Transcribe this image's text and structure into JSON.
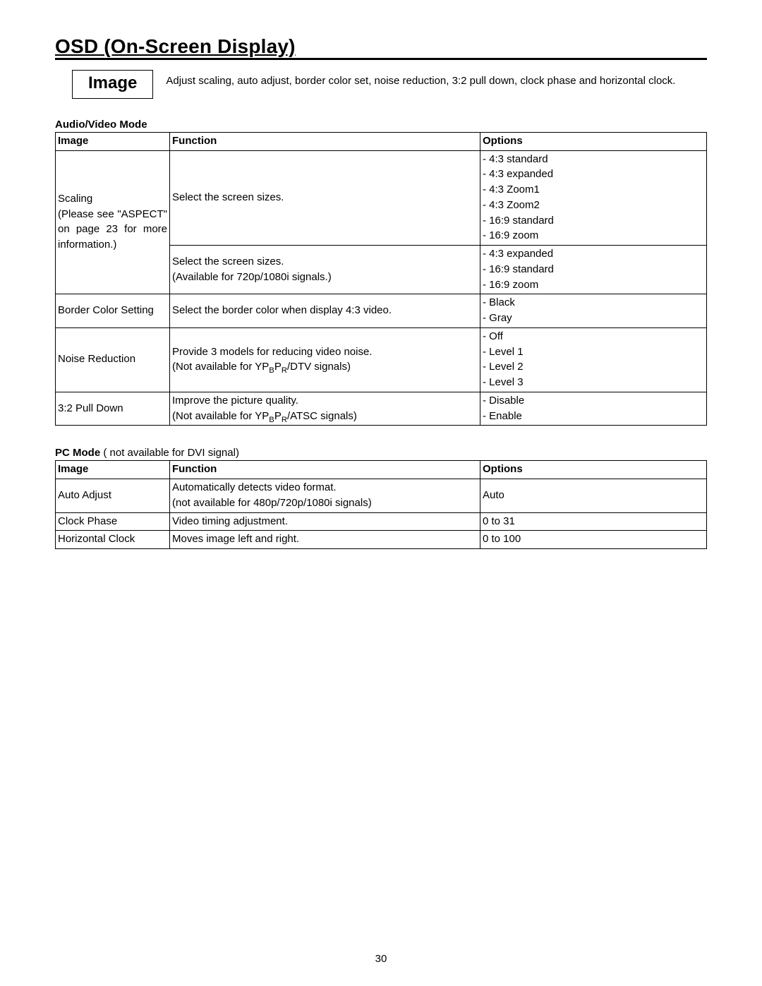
{
  "title": "OSD (On-Screen Display)",
  "section_box": "Image",
  "intro": "Adjust scaling, auto adjust, border color set, noise reduction, 3:2 pull down, clock phase and horizontal clock.",
  "table1": {
    "label": "Audio/Video Mode",
    "headers": {
      "image": "Image",
      "function": "Function",
      "options": "Options"
    },
    "scaling_label_line1": "Scaling",
    "scaling_label_line2": "(Please see \"ASPECT\"",
    "scaling_label_line3": "on page 23 for more",
    "scaling_label_line4": "information.)",
    "scaling_fn1": "Select the screen sizes.",
    "scaling_opts1": "- 4:3 standard\n- 4:3 expanded\n- 4:3 Zoom1\n- 4:3 Zoom2\n- 16:9 standard\n- 16:9 zoom",
    "scaling_fn2_l1": "Select the screen sizes.",
    "scaling_fn2_l2": "(Available for 720p/1080i signals.)",
    "scaling_opts2": "- 4:3 expanded\n- 16:9 standard\n- 16:9 zoom",
    "border_label": "Border Color Setting",
    "border_fn": "Select the border color when display 4:3 video.",
    "border_opts": "- Black\n- Gray",
    "noise_label": "Noise Reduction",
    "noise_fn_l1": "Provide 3 models for reducing video noise.",
    "noise_fn_l2a": "(Not available for YP",
    "noise_fn_l2b": "/DTV signals)",
    "noise_opts": "- Off\n- Level 1\n- Level 2\n- Level 3",
    "pulldown_label": "3:2 Pull Down",
    "pulldown_fn_l1": "Improve the picture quality.",
    "pulldown_fn_l2a": "(Not available for YP",
    "pulldown_fn_l2b": "/ATSC signals)",
    "pulldown_opts": "- Disable\n- Enable"
  },
  "table2": {
    "label": "PC Mode",
    "label_note": " not available for DVI signal)",
    "label_note_prefix": " (",
    "headers": {
      "image": "Image",
      "function": "Function",
      "options": "Options"
    },
    "auto_label": "Auto Adjust",
    "auto_fn_l1": "Automatically detects video format.",
    "auto_fn_l2": "(not available for 480p/720p/1080i signals)",
    "auto_opts": "Auto",
    "clock_label": "Clock Phase",
    "clock_fn": "Video timing adjustment.",
    "clock_opts": "0 to 31",
    "horiz_label": "Horizontal Clock",
    "horiz_fn": "Moves image left and right.",
    "horiz_opts": "0 to 100"
  },
  "sub_b": "B",
  "sub_r": "R",
  "p_text": "P",
  "page_number": "30"
}
